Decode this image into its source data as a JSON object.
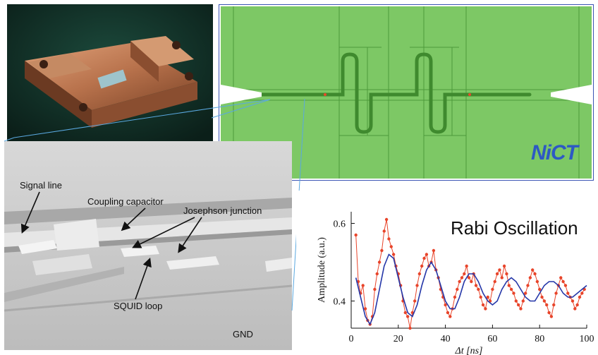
{
  "photo": {
    "icon": "sample-holder-photo"
  },
  "layout": {
    "logo_text": "NiCT",
    "fill_color": "#7dc865",
    "line_color": "#4d9a3a"
  },
  "sem": {
    "labels": {
      "signal_line": "Signal line",
      "coupling_capacitor": "Coupling capacitor",
      "josephson_junction": "Josephson junction",
      "squid_loop": "SQUID loop",
      "gnd": "GND"
    }
  },
  "chart_data": {
    "type": "line",
    "title": "Rabi Oscillation",
    "xlabel": "Δt [ns]",
    "ylabel": "Amplitude (a.u.)",
    "xlim": [
      0,
      100
    ],
    "ylim": [
      0.33,
      0.63
    ],
    "xticks": [
      "0",
      "20",
      "40",
      "60",
      "80",
      "100"
    ],
    "yticks": [
      "0.4",
      "0.6"
    ],
    "grid": false,
    "series": [
      {
        "kind": "data",
        "color": "#e8442a",
        "x": [
          2,
          3,
          4,
          5,
          6,
          7,
          8,
          9,
          10,
          11,
          12,
          13,
          14,
          15,
          16,
          17,
          18,
          19,
          20,
          21,
          22,
          23,
          24,
          25,
          26,
          27,
          28,
          29,
          30,
          31,
          32,
          33,
          34,
          35,
          36,
          37,
          38,
          39,
          40,
          41,
          42,
          43,
          44,
          45,
          46,
          47,
          48,
          49,
          50,
          51,
          52,
          53,
          54,
          55,
          56,
          57,
          58,
          59,
          60,
          61,
          62,
          63,
          64,
          65,
          66,
          67,
          68,
          69,
          70,
          71,
          72,
          73,
          74,
          75,
          76,
          77,
          78,
          79,
          80,
          81,
          82,
          83,
          84,
          85,
          86,
          87,
          88,
          89,
          90,
          91,
          92,
          93,
          94,
          95,
          96,
          97,
          98,
          99
        ],
        "y": [
          0.57,
          0.45,
          0.42,
          0.44,
          0.38,
          0.35,
          0.34,
          0.36,
          0.43,
          0.47,
          0.5,
          0.53,
          0.58,
          0.61,
          0.56,
          0.54,
          0.52,
          0.49,
          0.47,
          0.44,
          0.4,
          0.37,
          0.36,
          0.33,
          0.37,
          0.4,
          0.44,
          0.47,
          0.49,
          0.51,
          0.52,
          0.49,
          0.5,
          0.53,
          0.48,
          0.46,
          0.43,
          0.41,
          0.39,
          0.37,
          0.36,
          0.38,
          0.41,
          0.43,
          0.45,
          0.46,
          0.47,
          0.49,
          0.46,
          0.45,
          0.47,
          0.44,
          0.43,
          0.41,
          0.39,
          0.38,
          0.41,
          0.4,
          0.43,
          0.45,
          0.47,
          0.48,
          0.46,
          0.49,
          0.47,
          0.44,
          0.43,
          0.42,
          0.4,
          0.39,
          0.38,
          0.4,
          0.42,
          0.44,
          0.46,
          0.48,
          0.47,
          0.45,
          0.43,
          0.41,
          0.4,
          0.39,
          0.37,
          0.36,
          0.39,
          0.42,
          0.44,
          0.46,
          0.45,
          0.44,
          0.42,
          0.41,
          0.4,
          0.38,
          0.39,
          0.41,
          0.42,
          0.43
        ]
      },
      {
        "kind": "fit",
        "color": "#2436a8",
        "x": [
          2,
          4,
          6,
          8,
          10,
          12,
          14,
          16,
          18,
          20,
          22,
          24,
          26,
          28,
          30,
          32,
          34,
          36,
          38,
          40,
          42,
          44,
          46,
          48,
          50,
          52,
          54,
          56,
          58,
          60,
          62,
          64,
          66,
          68,
          70,
          72,
          74,
          76,
          78,
          80,
          82,
          84,
          86,
          88,
          90,
          92,
          94,
          96,
          98,
          100
        ],
        "y": [
          0.46,
          0.41,
          0.36,
          0.34,
          0.37,
          0.43,
          0.49,
          0.52,
          0.51,
          0.46,
          0.41,
          0.37,
          0.36,
          0.39,
          0.44,
          0.48,
          0.5,
          0.48,
          0.44,
          0.4,
          0.38,
          0.38,
          0.41,
          0.45,
          0.47,
          0.47,
          0.45,
          0.42,
          0.4,
          0.39,
          0.4,
          0.43,
          0.45,
          0.46,
          0.45,
          0.43,
          0.41,
          0.4,
          0.4,
          0.42,
          0.44,
          0.45,
          0.45,
          0.44,
          0.42,
          0.41,
          0.41,
          0.42,
          0.43,
          0.44
        ]
      }
    ]
  }
}
